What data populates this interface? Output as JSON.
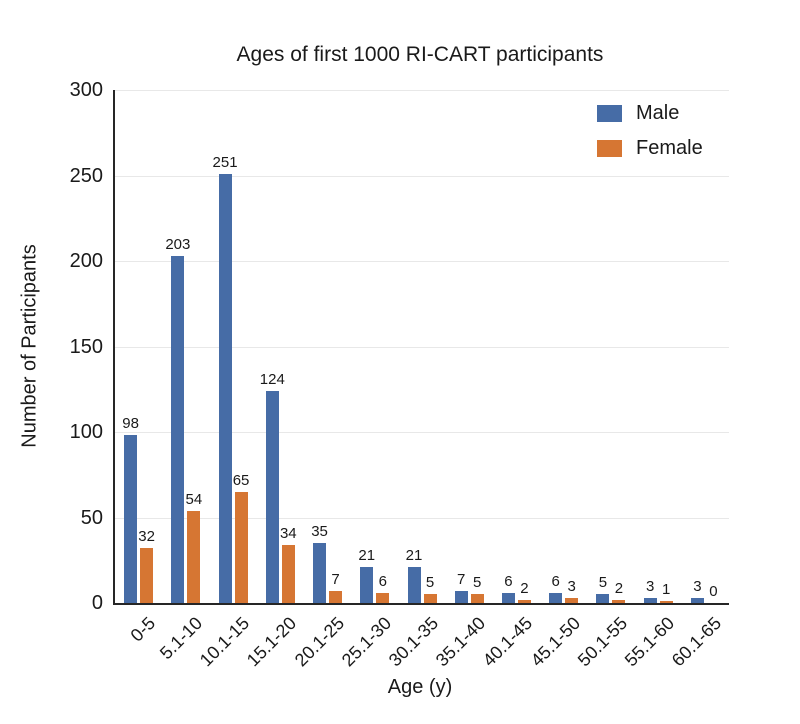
{
  "chart_data": {
    "type": "bar",
    "title": "Ages of first 1000 RI-CART participants",
    "xlabel": "Age (y)",
    "ylabel": "Number of Participants",
    "categories": [
      "0-5",
      "5.1-10",
      "10.1-15",
      "15.1-20",
      "20.1-25",
      "25.1-30",
      "30.1-35",
      "35.1-40",
      "40.1-45",
      "45.1-50",
      "50.1-55",
      "55.1-60",
      "60.1-65"
    ],
    "series": [
      {
        "name": "Male",
        "color": "#466CA6",
        "values": [
          98,
          203,
          251,
          124,
          35,
          21,
          21,
          7,
          6,
          6,
          5,
          3,
          3
        ]
      },
      {
        "name": "Female",
        "color": "#D67633",
        "values": [
          32,
          54,
          65,
          34,
          7,
          6,
          5,
          5,
          2,
          3,
          2,
          1,
          0
        ]
      }
    ],
    "ylim": [
      0,
      300
    ],
    "yticks": [
      0,
      50,
      100,
      150,
      200,
      250,
      300
    ],
    "grid": true,
    "legend_position": "top-right",
    "value_labels": true
  },
  "colors": {
    "axis": "#262626",
    "gridline": "#e8e8e8",
    "text": "#1a1a1a",
    "background": "#ffffff"
  }
}
